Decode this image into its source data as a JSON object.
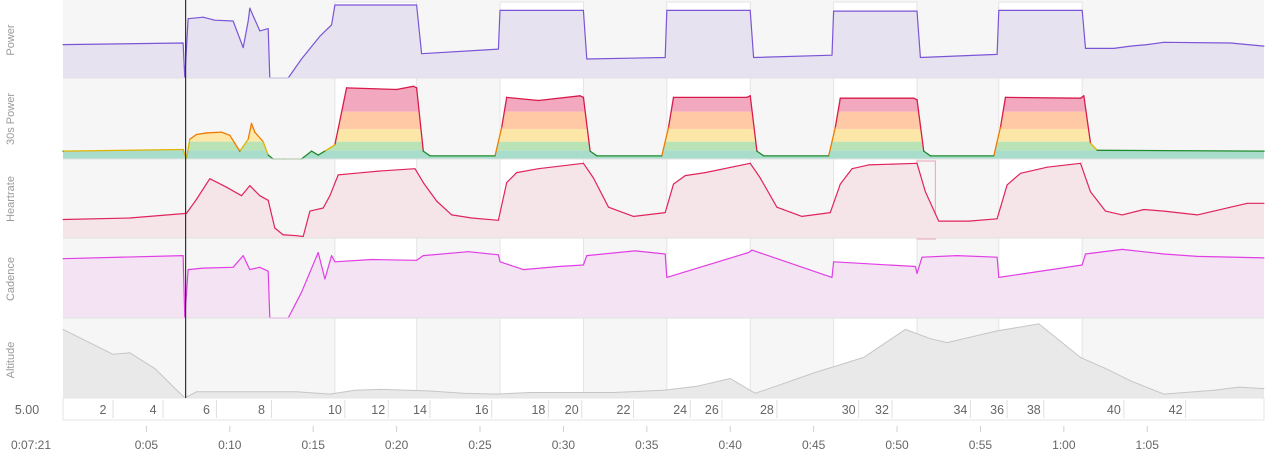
{
  "selection": {
    "elapsed": "0:07:21",
    "distance_value": "5.00",
    "cursor_time_min": 7.35
  },
  "panels": [
    {
      "name": "Power"
    },
    {
      "name": "30s Power"
    },
    {
      "name": "Heartrate"
    },
    {
      "name": "Cadence"
    },
    {
      "name": "Altitude"
    }
  ],
  "colors": {
    "power": "#7b55d6",
    "power_fill": "#e6e2ef",
    "power30_green": "#1e8c2c",
    "hr": "#e0245e",
    "hr_fill": "#f5e4e8",
    "cadence": "#e13ee5",
    "cadence_fill": "#f3e3f3",
    "altitude": "#c6c6c6",
    "altitude_fill": "#e9e9e9",
    "zone_red": "#f2a9c0",
    "zone_orange": "#ffc9a6",
    "zone_yellow": "#fde7a8",
    "zone_green": "#b9e2b5",
    "zone_teal": "#a8dccb"
  },
  "chart_data": {
    "type": "line",
    "x_unit": "minutes",
    "xlim": [
      0,
      72
    ],
    "time_ticks": [
      "0:05",
      "0:10",
      "0:15",
      "0:20",
      "0:25",
      "0:30",
      "0:35",
      "0:40",
      "0:45",
      "0:50",
      "0:55",
      "1:00",
      "1:05"
    ],
    "time_tick_values": [
      5,
      10,
      15,
      20,
      25,
      30,
      35,
      40,
      45,
      50,
      55,
      60,
      65
    ],
    "distance_ticks": [
      "2",
      "4",
      "6",
      "8",
      "10",
      "12",
      "14",
      "16",
      "18",
      "20",
      "22",
      "24",
      "26",
      "28",
      "30",
      "32",
      "34",
      "36",
      "38",
      "40",
      "42"
    ],
    "distance_tick_times": [
      2.4,
      5.4,
      8.6,
      11.9,
      16.3,
      18.9,
      21.4,
      25.1,
      28.5,
      30.5,
      33.6,
      37.0,
      38.9,
      42.2,
      47.1,
      49.1,
      53.8,
      56.0,
      58.2,
      63.0,
      66.7
    ],
    "intervals": [
      {
        "start": 16.3,
        "end": 21.2
      },
      {
        "start": 26.2,
        "end": 31.2
      },
      {
        "start": 36.2,
        "end": 41.2
      },
      {
        "start": 46.2,
        "end": 51.2
      },
      {
        "start": 56.1,
        "end": 61.1
      }
    ],
    "highlight_hr": {
      "start": 51.2,
      "end": 52.3
    },
    "series": [
      {
        "name": "Power",
        "ylim": [
          0,
          1
        ],
        "x": [
          0,
          7.2,
          7.3,
          7.5,
          8.4,
          9.1,
          10.2,
          10.8,
          11.1,
          11.2,
          11.8,
          12.3,
          12.4,
          13.5,
          14.3,
          15.4,
          16.1,
          16.3,
          21.2,
          21.5,
          26.1,
          26.2,
          31.2,
          31.4,
          36.1,
          36.2,
          41.2,
          41.4,
          46.1,
          46.2,
          51.2,
          51.4,
          56.0,
          56.1,
          61.1,
          61.3,
          63.0,
          64.0,
          65.0,
          66.0,
          70.0,
          72.0
        ],
        "values": [
          0.44,
          0.46,
          0.0,
          0.78,
          0.8,
          0.76,
          0.75,
          0.4,
          0.75,
          0.92,
          0.62,
          0.65,
          0.0,
          0.0,
          0.25,
          0.55,
          0.7,
          0.96,
          0.96,
          0.32,
          0.38,
          0.89,
          0.89,
          0.25,
          0.27,
          0.89,
          0.89,
          0.27,
          0.3,
          0.88,
          0.88,
          0.27,
          0.31,
          0.89,
          0.89,
          0.39,
          0.39,
          0.42,
          0.44,
          0.47,
          0.46,
          0.42
        ]
      },
      {
        "name": "30s Power",
        "ylim": [
          0,
          1
        ],
        "x": [
          0,
          7.2,
          7.4,
          7.6,
          8.0,
          8.6,
          9.5,
          10.0,
          10.6,
          11.1,
          11.3,
          11.5,
          12.0,
          12.3,
          12.6,
          13.3,
          14.3,
          14.9,
          15.3,
          15.7,
          16.3,
          17.0,
          20.0,
          21.0,
          21.2,
          21.6,
          22.0,
          25.9,
          26.3,
          26.6,
          28.5,
          31.0,
          31.2,
          31.6,
          32.0,
          35.9,
          36.3,
          36.6,
          41.0,
          41.2,
          41.6,
          42.0,
          45.9,
          46.3,
          46.6,
          51.0,
          51.2,
          51.6,
          52.0,
          55.8,
          56.2,
          56.5,
          61.0,
          61.2,
          61.6,
          62.0,
          72.0
        ],
        "values": [
          0.1,
          0.12,
          0.0,
          0.25,
          0.31,
          0.33,
          0.34,
          0.3,
          0.1,
          0.25,
          0.45,
          0.34,
          0.22,
          0.05,
          0.0,
          0.0,
          0.0,
          0.1,
          0.05,
          0.1,
          0.18,
          0.9,
          0.88,
          0.92,
          0.9,
          0.1,
          0.04,
          0.04,
          0.4,
          0.78,
          0.74,
          0.8,
          0.78,
          0.1,
          0.04,
          0.04,
          0.4,
          0.78,
          0.78,
          0.8,
          0.1,
          0.04,
          0.04,
          0.4,
          0.77,
          0.77,
          0.75,
          0.1,
          0.04,
          0.04,
          0.4,
          0.78,
          0.77,
          0.8,
          0.2,
          0.11,
          0.1
        ]
      },
      {
        "name": "Heartrate",
        "ylim": [
          0,
          1
        ],
        "x": [
          0,
          4.0,
          7.4,
          8.0,
          8.8,
          9.8,
          10.7,
          11.2,
          11.8,
          12.3,
          12.7,
          13.2,
          13.3,
          14.0,
          14.4,
          14.8,
          15.6,
          16.0,
          16.5,
          17.5,
          19.0,
          21.1,
          21.6,
          22.4,
          23.3,
          24.5,
          26.1,
          26.6,
          27.2,
          28.5,
          31.2,
          31.8,
          32.7,
          34.2,
          36.1,
          36.6,
          37.3,
          38.5,
          41.2,
          41.8,
          42.8,
          44.3,
          46.0,
          46.6,
          47.3,
          48.3,
          51.2,
          51.7,
          52.5,
          54.3,
          56.0,
          56.6,
          57.4,
          59.0,
          61.0,
          61.6,
          62.5,
          63.5,
          64.8,
          66.0,
          68.0,
          70.0,
          71.0,
          72.0
        ],
        "values": [
          0.24,
          0.26,
          0.32,
          0.5,
          0.77,
          0.66,
          0.55,
          0.68,
          0.55,
          0.49,
          0.13,
          0.04,
          0.04,
          0.03,
          0.02,
          0.35,
          0.39,
          0.55,
          0.82,
          0.84,
          0.87,
          0.9,
          0.72,
          0.48,
          0.3,
          0.26,
          0.23,
          0.72,
          0.85,
          0.9,
          0.97,
          0.78,
          0.4,
          0.28,
          0.33,
          0.7,
          0.81,
          0.85,
          0.97,
          0.78,
          0.4,
          0.28,
          0.33,
          0.7,
          0.9,
          0.95,
          0.97,
          0.6,
          0.22,
          0.22,
          0.25,
          0.69,
          0.84,
          0.92,
          0.97,
          0.6,
          0.35,
          0.3,
          0.37,
          0.35,
          0.3,
          0.4,
          0.45,
          0.45
        ]
      },
      {
        "name": "Cadence",
        "ylim": [
          0,
          1
        ],
        "x": [
          0,
          7.2,
          7.3,
          7.5,
          8.4,
          10.2,
          10.8,
          11.2,
          11.8,
          12.3,
          12.4,
          13.5,
          14.3,
          15.3,
          15.7,
          16.1,
          16.3,
          18.5,
          21.2,
          21.6,
          24.3,
          26.1,
          26.2,
          27.6,
          29.7,
          31.2,
          31.4,
          34.3,
          36.1,
          36.2,
          41.1,
          41.3,
          46.1,
          46.2,
          51.1,
          51.2,
          51.5,
          53.6,
          56.0,
          56.1,
          61.1,
          61.3,
          63.5,
          66.0,
          68.0,
          72.0
        ],
        "values": [
          0.76,
          0.8,
          0.0,
          0.62,
          0.64,
          0.65,
          0.8,
          0.62,
          0.65,
          0.6,
          0.0,
          0.0,
          0.33,
          0.84,
          0.5,
          0.8,
          0.72,
          0.75,
          0.74,
          0.8,
          0.85,
          0.81,
          0.72,
          0.62,
          0.66,
          0.68,
          0.8,
          0.86,
          0.82,
          0.52,
          0.84,
          0.87,
          0.52,
          0.72,
          0.66,
          0.57,
          0.78,
          0.8,
          0.78,
          0.52,
          0.68,
          0.82,
          0.88,
          0.82,
          0.79,
          0.77
        ]
      },
      {
        "name": "Altitude",
        "ylim": [
          0,
          1
        ],
        "x": [
          0,
          1.5,
          3.0,
          4.0,
          5.5,
          7.3,
          8.0,
          12.0,
          14.0,
          16.0,
          17.5,
          19.0,
          22.0,
          24.0,
          26.0,
          28.0,
          30.0,
          33.0,
          36.0,
          38.0,
          40.0,
          41.5,
          43.0,
          45.0,
          48.0,
          50.5,
          52.0,
          53.0,
          56.0,
          58.5,
          61.0,
          62.5,
          64.0,
          66.0,
          69.0,
          70.5,
          72.0
        ],
        "values": [
          0.88,
          0.72,
          0.56,
          0.58,
          0.38,
          0.0,
          0.08,
          0.08,
          0.08,
          0.05,
          0.1,
          0.11,
          0.09,
          0.06,
          0.05,
          0.07,
          0.07,
          0.07,
          0.1,
          0.15,
          0.25,
          0.06,
          0.17,
          0.32,
          0.52,
          0.88,
          0.76,
          0.71,
          0.86,
          0.95,
          0.52,
          0.38,
          0.22,
          0.05,
          0.1,
          0.14,
          0.12
        ]
      }
    ]
  }
}
